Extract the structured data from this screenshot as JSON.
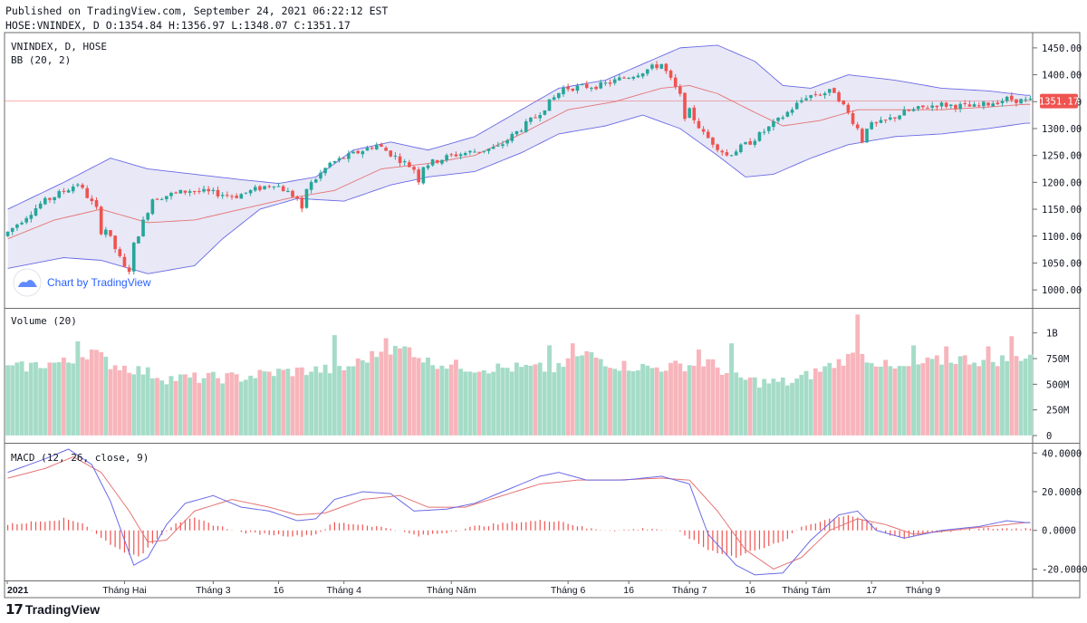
{
  "header": {
    "published": "Published on TradingView.com, September 24, 2021 06:22:12 EST",
    "ohlc": "HOSE:VNINDEX, D O:1354.84 H:1356.97 L:1348.07 C:1351.17"
  },
  "footer": {
    "brand": "TradingView",
    "mark_icon": "tradingview-logo-icon"
  },
  "watermark": {
    "text": "Chart by TradingView",
    "icon": "tradingview-cloud-icon"
  },
  "colors": {
    "up": "#26a69a",
    "down": "#ef5350",
    "vol_up": "#a5dcc8",
    "vol_down": "#f7b5bb",
    "bb_line": "#6a6ae6",
    "bb_fill": "#e6e6f5",
    "bb_mid": "#e57373",
    "macd": "#6a6ae6",
    "signal": "#e57373",
    "hist": "#ef5350",
    "price_tag": "#ef5350"
  },
  "chart_data": [
    {
      "type": "candlestick",
      "pane_label": "VNINDEX, D, HOSE",
      "indicator_label": "BB (20, 2)",
      "yticks": [
        "1000.00",
        "1050.00",
        "1100.00",
        "1150.00",
        "1200.00",
        "1250.00",
        "1300.00",
        "1350.00",
        "1400.00",
        "1450.00"
      ],
      "ylim": [
        975,
        1470
      ],
      "last_price": "1351.17",
      "anchors": [
        [
          0,
          1100
        ],
        [
          8,
          1160
        ],
        [
          16,
          1198
        ],
        [
          20,
          1150
        ],
        [
          26,
          1040
        ],
        [
          32,
          1170
        ],
        [
          40,
          1185
        ],
        [
          50,
          1175
        ],
        [
          58,
          1198
        ],
        [
          63,
          1170
        ],
        [
          70,
          1235
        ],
        [
          80,
          1270
        ],
        [
          88,
          1225
        ],
        [
          96,
          1250
        ],
        [
          106,
          1265
        ],
        [
          114,
          1322
        ],
        [
          120,
          1375
        ],
        [
          128,
          1380
        ],
        [
          135,
          1400
        ],
        [
          141,
          1420
        ],
        [
          145,
          1360
        ],
        [
          150,
          1290
        ],
        [
          155,
          1250
        ],
        [
          160,
          1275
        ],
        [
          166,
          1315
        ],
        [
          172,
          1360
        ],
        [
          178,
          1370
        ],
        [
          183,
          1300
        ],
        [
          188,
          1310
        ],
        [
          193,
          1330
        ],
        [
          200,
          1345
        ],
        [
          208,
          1340
        ],
        [
          215,
          1355
        ],
        [
          219,
          1351
        ]
      ],
      "dump_days": [
        20,
        26,
        63,
        88,
        145,
        183
      ],
      "bb_upper": [
        [
          0,
          1150
        ],
        [
          12,
          1200
        ],
        [
          22,
          1245
        ],
        [
          30,
          1225
        ],
        [
          40,
          1215
        ],
        [
          50,
          1205
        ],
        [
          58,
          1198
        ],
        [
          66,
          1210
        ],
        [
          74,
          1260
        ],
        [
          82,
          1275
        ],
        [
          90,
          1260
        ],
        [
          100,
          1285
        ],
        [
          110,
          1335
        ],
        [
          118,
          1375
        ],
        [
          128,
          1390
        ],
        [
          136,
          1420
        ],
        [
          144,
          1450
        ],
        [
          152,
          1455
        ],
        [
          160,
          1425
        ],
        [
          166,
          1380
        ],
        [
          172,
          1375
        ],
        [
          180,
          1400
        ],
        [
          190,
          1390
        ],
        [
          200,
          1375
        ],
        [
          210,
          1370
        ],
        [
          218,
          1362
        ]
      ],
      "bb_lower": [
        [
          0,
          1040
        ],
        [
          12,
          1060
        ],
        [
          20,
          1055
        ],
        [
          30,
          1030
        ],
        [
          40,
          1045
        ],
        [
          46,
          1095
        ],
        [
          54,
          1150
        ],
        [
          62,
          1170
        ],
        [
          72,
          1165
        ],
        [
          82,
          1195
        ],
        [
          90,
          1210
        ],
        [
          100,
          1220
        ],
        [
          110,
          1255
        ],
        [
          118,
          1290
        ],
        [
          128,
          1305
        ],
        [
          136,
          1325
        ],
        [
          144,
          1300
        ],
        [
          152,
          1250
        ],
        [
          158,
          1210
        ],
        [
          164,
          1215
        ],
        [
          172,
          1245
        ],
        [
          180,
          1270
        ],
        [
          190,
          1285
        ],
        [
          200,
          1290
        ],
        [
          210,
          1300
        ],
        [
          218,
          1310
        ]
      ],
      "bb_mid": [
        [
          0,
          1095
        ],
        [
          10,
          1130
        ],
        [
          20,
          1150
        ],
        [
          30,
          1125
        ],
        [
          40,
          1130
        ],
        [
          50,
          1150
        ],
        [
          60,
          1170
        ],
        [
          70,
          1185
        ],
        [
          80,
          1225
        ],
        [
          90,
          1235
        ],
        [
          100,
          1250
        ],
        [
          110,
          1290
        ],
        [
          120,
          1335
        ],
        [
          130,
          1350
        ],
        [
          140,
          1375
        ],
        [
          146,
          1380
        ],
        [
          152,
          1365
        ],
        [
          160,
          1330
        ],
        [
          166,
          1305
        ],
        [
          174,
          1315
        ],
        [
          182,
          1335
        ],
        [
          190,
          1335
        ],
        [
          200,
          1335
        ],
        [
          210,
          1340
        ],
        [
          218,
          1345
        ]
      ]
    },
    {
      "type": "bar",
      "pane_label": "Volume (20)",
      "yticks": [
        "0",
        "250M",
        "500M",
        "750M",
        "1B"
      ],
      "ylim": [
        0,
        1200
      ],
      "unit": "M",
      "base": [
        [
          0,
          650
        ],
        [
          8,
          700
        ],
        [
          14,
          720
        ],
        [
          18,
          830
        ],
        [
          22,
          700
        ],
        [
          28,
          640
        ],
        [
          34,
          560
        ],
        [
          40,
          560
        ],
        [
          50,
          570
        ],
        [
          58,
          620
        ],
        [
          66,
          640
        ],
        [
          72,
          650
        ],
        [
          80,
          820
        ],
        [
          86,
          850
        ],
        [
          90,
          720
        ],
        [
          100,
          660
        ],
        [
          110,
          660
        ],
        [
          118,
          650
        ],
        [
          124,
          800
        ],
        [
          130,
          690
        ],
        [
          138,
          660
        ],
        [
          146,
          690
        ],
        [
          150,
          720
        ],
        [
          156,
          560
        ],
        [
          162,
          520
        ],
        [
          168,
          520
        ],
        [
          176,
          680
        ],
        [
          182,
          800
        ],
        [
          190,
          640
        ],
        [
          198,
          720
        ],
        [
          204,
          750
        ],
        [
          210,
          720
        ],
        [
          218,
          780
        ]
      ],
      "spikes": [
        [
          15,
          920
        ],
        [
          70,
          980
        ],
        [
          81,
          950
        ],
        [
          116,
          880
        ],
        [
          121,
          900
        ],
        [
          148,
          840
        ],
        [
          155,
          900
        ],
        [
          182,
          1180
        ],
        [
          194,
          880
        ],
        [
          201,
          870
        ],
        [
          210,
          870
        ],
        [
          215,
          970
        ]
      ]
    },
    {
      "type": "line",
      "pane_label": "MACD (12, 26, close, 9)",
      "yticks": [
        "-20.0000",
        "0.0000",
        "20.0000",
        "40.0000"
      ],
      "ylim": [
        -24,
        42
      ],
      "macd": [
        [
          0,
          30
        ],
        [
          8,
          37
        ],
        [
          13,
          42
        ],
        [
          18,
          34
        ],
        [
          22,
          15
        ],
        [
          25,
          -5
        ],
        [
          27,
          -18
        ],
        [
          30,
          -14
        ],
        [
          34,
          3
        ],
        [
          38,
          14
        ],
        [
          44,
          18
        ],
        [
          50,
          12
        ],
        [
          56,
          10
        ],
        [
          62,
          5
        ],
        [
          66,
          6
        ],
        [
          70,
          16
        ],
        [
          76,
          20
        ],
        [
          82,
          19
        ],
        [
          87,
          10
        ],
        [
          94,
          11
        ],
        [
          100,
          14
        ],
        [
          108,
          22
        ],
        [
          114,
          28
        ],
        [
          118,
          30
        ],
        [
          124,
          26
        ],
        [
          132,
          26
        ],
        [
          140,
          28
        ],
        [
          146,
          24
        ],
        [
          150,
          -2
        ],
        [
          156,
          -18
        ],
        [
          160,
          -23
        ],
        [
          166,
          -22
        ],
        [
          172,
          -5
        ],
        [
          178,
          8
        ],
        [
          182,
          10
        ],
        [
          186,
          0
        ],
        [
          192,
          -4
        ],
        [
          200,
          0
        ],
        [
          208,
          2
        ],
        [
          214,
          5
        ],
        [
          218,
          4
        ]
      ],
      "signal": [
        [
          0,
          27
        ],
        [
          8,
          32
        ],
        [
          14,
          38
        ],
        [
          20,
          30
        ],
        [
          26,
          10
        ],
        [
          30,
          -6
        ],
        [
          34,
          -5
        ],
        [
          40,
          10
        ],
        [
          48,
          16
        ],
        [
          56,
          12
        ],
        [
          62,
          8
        ],
        [
          68,
          9
        ],
        [
          76,
          16
        ],
        [
          84,
          18
        ],
        [
          90,
          12
        ],
        [
          98,
          12
        ],
        [
          106,
          18
        ],
        [
          114,
          24
        ],
        [
          122,
          26
        ],
        [
          130,
          26
        ],
        [
          140,
          27
        ],
        [
          146,
          26
        ],
        [
          152,
          10
        ],
        [
          158,
          -10
        ],
        [
          164,
          -20
        ],
        [
          170,
          -14
        ],
        [
          176,
          0
        ],
        [
          182,
          6
        ],
        [
          188,
          3
        ],
        [
          194,
          -2
        ],
        [
          202,
          0
        ],
        [
          210,
          2
        ],
        [
          218,
          4
        ]
      ],
      "hist": [
        [
          0,
          3
        ],
        [
          8,
          5
        ],
        [
          12,
          6
        ],
        [
          16,
          4
        ],
        [
          20,
          -4
        ],
        [
          24,
          -10
        ],
        [
          28,
          -14
        ],
        [
          32,
          -4
        ],
        [
          36,
          4
        ],
        [
          40,
          6
        ],
        [
          44,
          3
        ],
        [
          50,
          -1
        ],
        [
          56,
          -2
        ],
        [
          62,
          -3
        ],
        [
          66,
          -2
        ],
        [
          70,
          4
        ],
        [
          76,
          3
        ],
        [
          82,
          1
        ],
        [
          88,
          -3
        ],
        [
          94,
          -1
        ],
        [
          100,
          2
        ],
        [
          108,
          4
        ],
        [
          114,
          5
        ],
        [
          118,
          5
        ],
        [
          124,
          1
        ],
        [
          130,
          0
        ],
        [
          138,
          1
        ],
        [
          144,
          -1
        ],
        [
          150,
          -10
        ],
        [
          156,
          -14
        ],
        [
          160,
          -10
        ],
        [
          166,
          -6
        ],
        [
          170,
          2
        ],
        [
          176,
          6
        ],
        [
          180,
          8
        ],
        [
          184,
          5
        ],
        [
          188,
          -2
        ],
        [
          192,
          -4
        ],
        [
          198,
          -1
        ],
        [
          204,
          0
        ],
        [
          210,
          1
        ],
        [
          218,
          1
        ]
      ]
    }
  ],
  "xaxis": {
    "labels": [
      {
        "text": "2021",
        "day": 0,
        "bold": true
      },
      {
        "text": "Tháng Hai",
        "day": 25
      },
      {
        "text": "Tháng 3",
        "day": 44
      },
      {
        "text": "16",
        "day": 58
      },
      {
        "text": "Tháng 4",
        "day": 72
      },
      {
        "text": "Tháng Năm",
        "day": 95
      },
      {
        "text": "Tháng 6",
        "day": 120
      },
      {
        "text": "16",
        "day": 133
      },
      {
        "text": "Tháng 7",
        "day": 146
      },
      {
        "text": "16",
        "day": 159
      },
      {
        "text": "Tháng Tám",
        "day": 171
      },
      {
        "text": "17",
        "day": 185
      },
      {
        "text": "Tháng 9",
        "day": 196
      }
    ],
    "days": 220
  }
}
